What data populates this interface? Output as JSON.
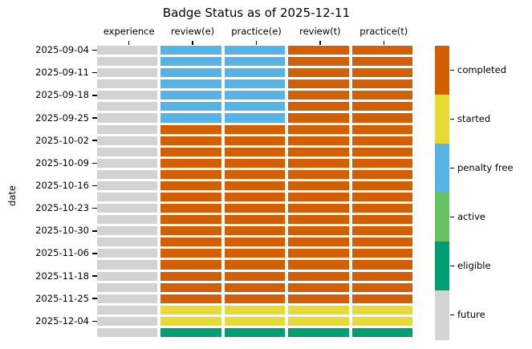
{
  "chart_data": {
    "type": "heatmap",
    "title": "Badge Status as of 2025-12-11",
    "xlabel": "",
    "ylabel": "date",
    "columns": [
      "experience",
      "review(e)",
      "practice(e)",
      "review(t)",
      "practice(t)"
    ],
    "y_tick_labels": [
      "2025-09-04",
      "2025-09-11",
      "2025-09-18",
      "2025-09-25",
      "2025-10-02",
      "2025-10-09",
      "2025-10-16",
      "2025-10-23",
      "2025-10-30",
      "2025-11-06",
      "2025-11-18",
      "2025-11-25",
      "2025-12-04"
    ],
    "status_colors": {
      "completed": "#d35f02",
      "started": "#e7da33",
      "penalty free": "#56b3e6",
      "active": "#66c160",
      "eligible": "#029e73",
      "future": "#d3d3d3"
    },
    "legend": {
      "position": "right-colorbar",
      "entries": [
        {
          "label": "completed",
          "color": "#d35f02"
        },
        {
          "label": "started",
          "color": "#e7da33"
        },
        {
          "label": "penalty free",
          "color": "#56b3e6"
        },
        {
          "label": "active",
          "color": "#66c160"
        },
        {
          "label": "eligible",
          "color": "#029e73"
        },
        {
          "label": "future",
          "color": "#d3d3d3"
        }
      ]
    },
    "rows": [
      {
        "label": "2025-09-04",
        "values": [
          "future",
          "penalty free",
          "penalty free",
          "completed",
          "completed"
        ]
      },
      {
        "label": "",
        "values": [
          "future",
          "penalty free",
          "penalty free",
          "completed",
          "completed"
        ]
      },
      {
        "label": "2025-09-11",
        "values": [
          "future",
          "penalty free",
          "penalty free",
          "completed",
          "completed"
        ]
      },
      {
        "label": "",
        "values": [
          "future",
          "penalty free",
          "penalty free",
          "completed",
          "completed"
        ]
      },
      {
        "label": "2025-09-18",
        "values": [
          "future",
          "penalty free",
          "penalty free",
          "completed",
          "completed"
        ]
      },
      {
        "label": "",
        "values": [
          "future",
          "penalty free",
          "penalty free",
          "completed",
          "completed"
        ]
      },
      {
        "label": "2025-09-25",
        "values": [
          "future",
          "penalty free",
          "penalty free",
          "completed",
          "completed"
        ]
      },
      {
        "label": "",
        "values": [
          "future",
          "completed",
          "completed",
          "completed",
          "completed"
        ]
      },
      {
        "label": "2025-10-02",
        "values": [
          "future",
          "completed",
          "completed",
          "completed",
          "completed"
        ]
      },
      {
        "label": "",
        "values": [
          "future",
          "completed",
          "completed",
          "completed",
          "completed"
        ]
      },
      {
        "label": "2025-10-09",
        "values": [
          "future",
          "completed",
          "completed",
          "completed",
          "completed"
        ]
      },
      {
        "label": "",
        "values": [
          "future",
          "completed",
          "completed",
          "completed",
          "completed"
        ]
      },
      {
        "label": "2025-10-16",
        "values": [
          "future",
          "completed",
          "completed",
          "completed",
          "completed"
        ]
      },
      {
        "label": "",
        "values": [
          "future",
          "completed",
          "completed",
          "completed",
          "completed"
        ]
      },
      {
        "label": "2025-10-23",
        "values": [
          "future",
          "completed",
          "completed",
          "completed",
          "completed"
        ]
      },
      {
        "label": "",
        "values": [
          "future",
          "completed",
          "completed",
          "completed",
          "completed"
        ]
      },
      {
        "label": "2025-10-30",
        "values": [
          "future",
          "completed",
          "completed",
          "completed",
          "completed"
        ]
      },
      {
        "label": "",
        "values": [
          "future",
          "completed",
          "completed",
          "completed",
          "completed"
        ]
      },
      {
        "label": "2025-11-06",
        "values": [
          "future",
          "completed",
          "completed",
          "completed",
          "completed"
        ]
      },
      {
        "label": "",
        "values": [
          "future",
          "completed",
          "completed",
          "completed",
          "completed"
        ]
      },
      {
        "label": "2025-11-18",
        "values": [
          "future",
          "completed",
          "completed",
          "completed",
          "completed"
        ]
      },
      {
        "label": "",
        "values": [
          "future",
          "completed",
          "completed",
          "completed",
          "completed"
        ]
      },
      {
        "label": "2025-11-25",
        "values": [
          "future",
          "completed",
          "completed",
          "completed",
          "completed"
        ]
      },
      {
        "label": "",
        "values": [
          "future",
          "started",
          "started",
          "started",
          "started"
        ]
      },
      {
        "label": "2025-12-04",
        "values": [
          "future",
          "started",
          "started",
          "started",
          "started"
        ]
      },
      {
        "label": "",
        "values": [
          "future",
          "eligible",
          "eligible",
          "eligible",
          "eligible"
        ]
      }
    ]
  }
}
